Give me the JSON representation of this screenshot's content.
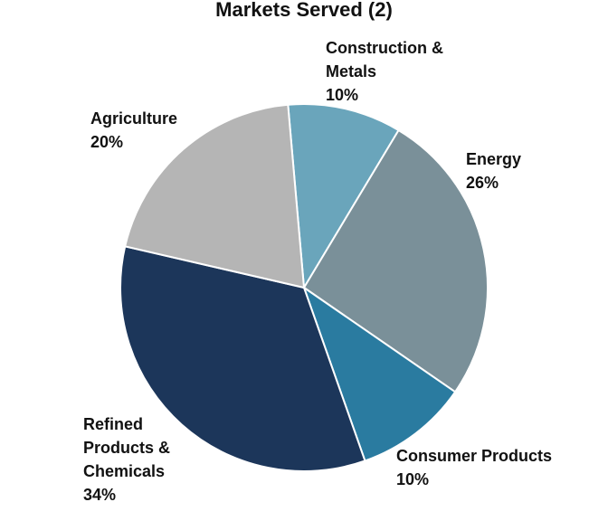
{
  "chart_data": {
    "type": "pie",
    "title": "Markets Served (2)",
    "categories": [
      "Construction & Metals",
      "Energy",
      "Consumer Products",
      "Refined Products & Chemicals",
      "Agriculture"
    ],
    "values": [
      10,
      26,
      10,
      34,
      20
    ],
    "value_labels": [
      "10%",
      "26%",
      "10%",
      "34%",
      "20%"
    ],
    "colors": [
      "#6aa5bb",
      "#7a9099",
      "#2a7ba0",
      "#1c365a",
      "#b5b5b5"
    ]
  }
}
